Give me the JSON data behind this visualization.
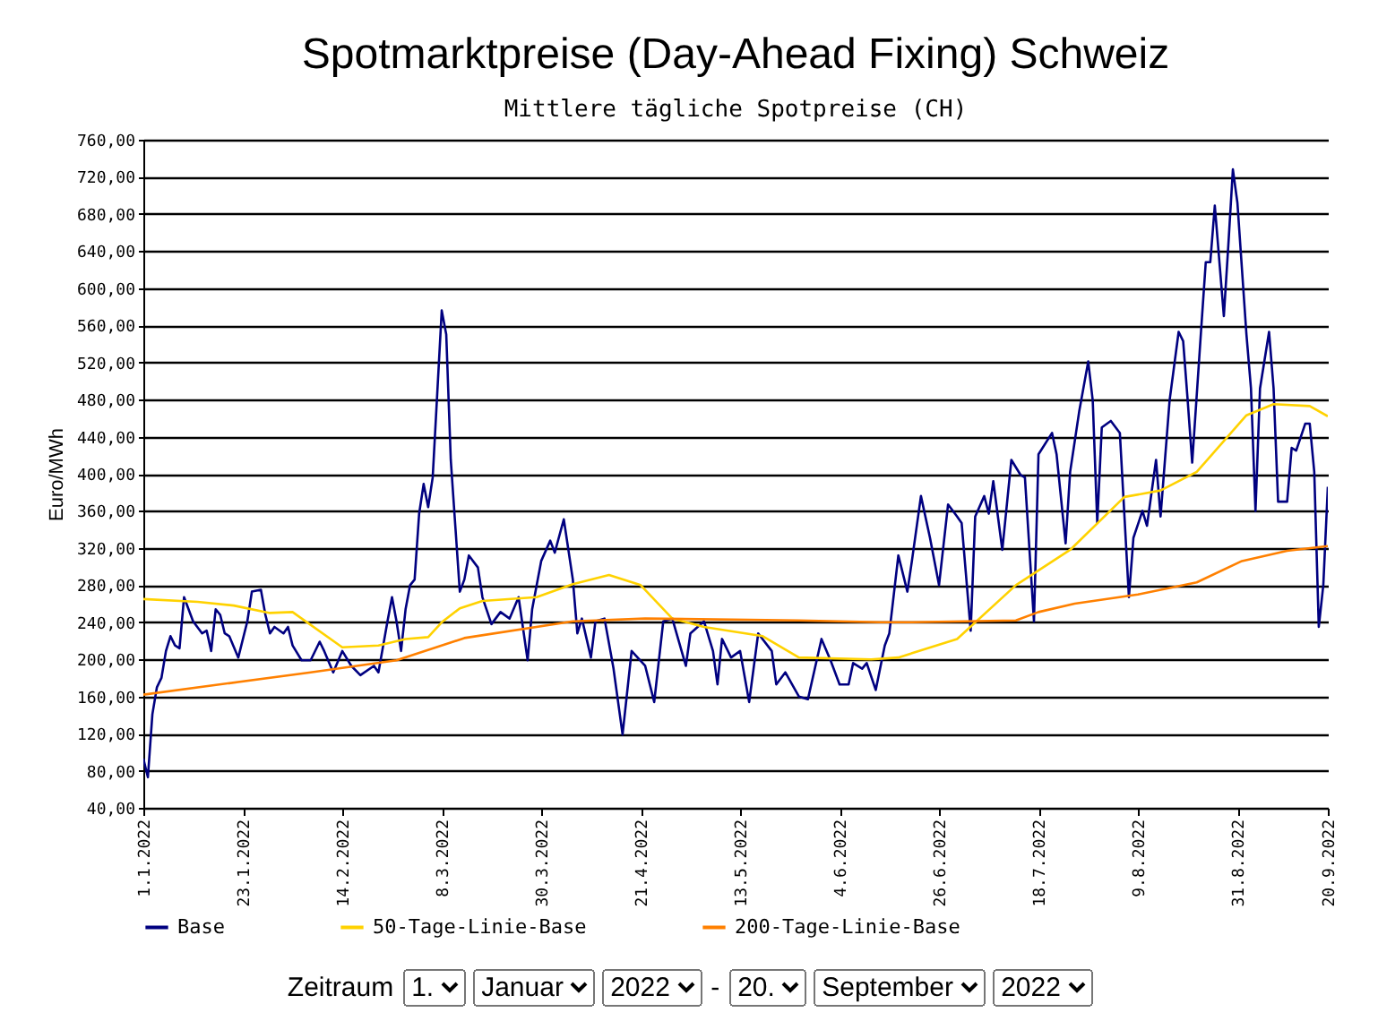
{
  "chart_data": {
    "type": "line",
    "title": "Spotmarktpreise (Day-Ahead Fixing) Schweiz",
    "subtitle": "Mittlere tägliche Spotpreise (CH)",
    "ylabel": "Euro/MWh",
    "xlim": [
      "2022-01-01",
      "2022-09-20"
    ],
    "xticks": [
      {
        "value": "2022-01-01",
        "label": "1.1.2022"
      },
      {
        "value": "2022-01-23",
        "label": "23.1.2022"
      },
      {
        "value": "2022-02-14",
        "label": "14.2.2022"
      },
      {
        "value": "2022-03-08",
        "label": "8.3.2022"
      },
      {
        "value": "2022-03-30",
        "label": "30.3.2022"
      },
      {
        "value": "2022-04-21",
        "label": "21.4.2022"
      },
      {
        "value": "2022-05-13",
        "label": "13.5.2022"
      },
      {
        "value": "2022-06-04",
        "label": "4.6.2022"
      },
      {
        "value": "2022-06-26",
        "label": "26.6.2022"
      },
      {
        "value": "2022-07-18",
        "label": "18.7.2022"
      },
      {
        "value": "2022-08-09",
        "label": "9.8.2022"
      },
      {
        "value": "2022-08-31",
        "label": "31.8.2022"
      },
      {
        "value": "2022-09-20",
        "label": "20.9.2022"
      }
    ],
    "ylim": [
      40,
      760
    ],
    "yticks": [
      {
        "value": 40,
        "label": "40,00"
      },
      {
        "value": 80,
        "label": "80,00"
      },
      {
        "value": 120,
        "label": "120,00"
      },
      {
        "value": 160,
        "label": "160,00"
      },
      {
        "value": 200,
        "label": "200,00"
      },
      {
        "value": 240,
        "label": "240,00"
      },
      {
        "value": 280,
        "label": "280,00"
      },
      {
        "value": 320,
        "label": "320,00"
      },
      {
        "value": 360,
        "label": "360,00"
      },
      {
        "value": 400,
        "label": "400,00"
      },
      {
        "value": 440,
        "label": "440,00"
      },
      {
        "value": 480,
        "label": "480,00"
      },
      {
        "value": 520,
        "label": "520,00"
      },
      {
        "value": 560,
        "label": "560,00"
      },
      {
        "value": 600,
        "label": "600,00"
      },
      {
        "value": 640,
        "label": "640,00"
      },
      {
        "value": 680,
        "label": "680,00"
      },
      {
        "value": 720,
        "label": "720,00"
      },
      {
        "value": 760,
        "label": "760,00"
      }
    ],
    "grid": "y",
    "legend": "bottom",
    "line_style": "solid",
    "series": [
      {
        "name": "Base",
        "color": "#000080",
        "x": [
          "2022-01-01",
          "2022-01-02",
          "2022-01-03",
          "2022-01-04",
          "2022-01-05",
          "2022-01-06",
          "2022-01-07",
          "2022-01-08",
          "2022-01-09",
          "2022-01-10",
          "2022-01-11",
          "2022-01-12",
          "2022-01-14",
          "2022-01-15",
          "2022-01-16",
          "2022-01-17",
          "2022-01-18",
          "2022-01-19",
          "2022-01-20",
          "2022-01-22",
          "2022-01-24",
          "2022-01-25",
          "2022-01-27",
          "2022-01-28",
          "2022-01-29",
          "2022-01-30",
          "2022-02-01",
          "2022-02-02",
          "2022-02-03",
          "2022-02-05",
          "2022-02-07",
          "2022-02-09",
          "2022-02-10",
          "2022-02-12",
          "2022-02-14",
          "2022-02-16",
          "2022-02-18",
          "2022-02-21",
          "2022-02-22",
          "2022-02-24",
          "2022-02-25",
          "2022-02-26",
          "2022-02-27",
          "2022-02-28",
          "2022-03-01",
          "2022-03-02",
          "2022-03-03",
          "2022-03-04",
          "2022-03-05",
          "2022-03-06",
          "2022-03-07",
          "2022-03-08",
          "2022-03-09",
          "2022-03-10",
          "2022-03-11",
          "2022-03-12",
          "2022-03-13",
          "2022-03-14",
          "2022-03-16",
          "2022-03-17",
          "2022-03-19",
          "2022-03-21",
          "2022-03-23",
          "2022-03-25",
          "2022-03-27",
          "2022-03-28",
          "2022-03-30",
          "2022-04-01",
          "2022-04-02",
          "2022-04-04",
          "2022-04-06",
          "2022-04-07",
          "2022-04-08",
          "2022-04-10",
          "2022-04-11",
          "2022-04-13",
          "2022-04-15",
          "2022-04-17",
          "2022-04-19",
          "2022-04-22",
          "2022-04-24",
          "2022-04-26",
          "2022-04-28",
          "2022-05-01",
          "2022-05-02",
          "2022-05-05",
          "2022-05-07",
          "2022-05-08",
          "2022-05-09",
          "2022-05-11",
          "2022-05-13",
          "2022-05-15",
          "2022-05-17",
          "2022-05-20",
          "2022-05-21",
          "2022-05-23",
          "2022-05-26",
          "2022-05-28",
          "2022-05-31",
          "2022-06-02",
          "2022-06-04",
          "2022-06-06",
          "2022-06-07",
          "2022-06-09",
          "2022-06-10",
          "2022-06-12",
          "2022-06-14",
          "2022-06-15",
          "2022-06-17",
          "2022-06-19",
          "2022-06-20",
          "2022-06-22",
          "2022-06-24",
          "2022-06-26",
          "2022-06-28",
          "2022-06-30",
          "2022-07-01",
          "2022-07-03",
          "2022-07-04",
          "2022-07-06",
          "2022-07-07",
          "2022-07-08",
          "2022-07-10",
          "2022-07-12",
          "2022-07-14",
          "2022-07-15",
          "2022-07-17",
          "2022-07-18",
          "2022-07-21",
          "2022-07-22",
          "2022-07-24",
          "2022-07-25",
          "2022-07-27",
          "2022-07-29",
          "2022-07-30",
          "2022-07-31",
          "2022-08-01",
          "2022-08-03",
          "2022-08-05",
          "2022-08-07",
          "2022-08-08",
          "2022-08-10",
          "2022-08-11",
          "2022-08-13",
          "2022-08-14",
          "2022-08-16",
          "2022-08-18",
          "2022-08-19",
          "2022-08-20",
          "2022-08-21",
          "2022-08-23",
          "2022-08-24",
          "2022-08-25",
          "2022-08-26",
          "2022-08-28",
          "2022-08-29",
          "2022-08-30",
          "2022-08-31",
          "2022-09-02",
          "2022-09-03",
          "2022-09-04",
          "2022-09-05",
          "2022-09-07",
          "2022-09-08",
          "2022-09-09",
          "2022-09-11",
          "2022-09-12",
          "2022-09-13",
          "2022-09-15",
          "2022-09-16",
          "2022-09-17",
          "2022-09-18",
          "2022-09-19",
          "2022-09-20"
        ],
        "values": [
          93,
          73,
          141,
          170,
          180,
          209,
          225,
          215,
          212,
          267,
          254,
          241,
          228,
          231,
          209,
          254,
          248,
          228,
          225,
          202,
          241,
          273,
          275,
          248,
          228,
          235,
          228,
          235,
          215,
          199,
          199,
          219,
          209,
          186,
          209,
          193,
          183,
          193,
          186,
          241,
          267,
          241,
          209,
          254,
          280,
          286,
          357,
          389,
          364,
          396,
          486,
          576,
          550,
          415,
          344,
          273,
          286,
          312,
          299,
          267,
          238,
          251,
          244,
          267,
          199,
          254,
          306,
          328,
          315,
          351,
          286,
          228,
          244,
          202,
          241,
          244,
          190,
          119,
          209,
          193,
          154,
          241,
          244,
          193,
          228,
          241,
          209,
          173,
          222,
          202,
          209,
          154,
          228,
          209,
          173,
          186,
          160,
          157,
          222,
          199,
          173,
          173,
          196,
          190,
          196,
          167,
          215,
          228,
          312,
          273,
          306,
          376,
          331,
          280,
          367,
          354,
          347,
          231,
          354,
          376,
          357,
          392,
          318,
          415,
          399,
          396,
          241,
          421,
          444,
          421,
          325,
          402,
          467,
          521,
          479,
          347,
          450,
          457,
          444,
          267,
          331,
          360,
          344,
          415,
          354,
          479,
          553,
          543,
          479,
          412,
          557,
          628,
          628,
          689,
          570,
          647,
          728,
          692,
          550,
          492,
          360,
          492,
          553,
          492,
          370,
          370,
          428,
          425,
          454,
          454,
          402,
          235,
          280,
          386
        ]
      },
      {
        "name": "50-Tage-Linie-Base",
        "color": "#ffd200",
        "x": [
          "2022-01-01",
          "2022-01-13",
          "2022-01-21",
          "2022-01-29",
          "2022-02-03",
          "2022-02-14",
          "2022-02-22",
          "2022-02-28",
          "2022-03-05",
          "2022-03-08",
          "2022-03-12",
          "2022-03-17",
          "2022-03-29",
          "2022-04-06",
          "2022-04-14",
          "2022-04-21",
          "2022-04-28",
          "2022-05-05",
          "2022-05-18",
          "2022-05-26",
          "2022-06-11",
          "2022-06-17",
          "2022-06-30",
          "2022-07-13",
          "2022-07-25",
          "2022-08-06",
          "2022-08-14",
          "2022-08-22",
          "2022-09-02",
          "2022-09-08",
          "2022-09-16",
          "2022-09-20"
        ],
        "values": [
          265,
          262,
          258,
          250,
          251,
          213,
          215,
          222,
          224,
          240,
          255,
          263,
          267,
          281,
          291,
          280,
          244,
          235,
          225,
          202,
          200,
          202,
          222,
          280,
          318,
          375,
          382,
          402,
          463,
          475,
          473,
          462
        ]
      },
      {
        "name": "200-Tage-Linie-Base",
        "color": "#ff8000",
        "x": [
          "2022-01-01",
          "2022-02-07",
          "2022-02-26",
          "2022-03-13",
          "2022-04-06",
          "2022-04-22",
          "2022-05-26",
          "2022-06-13",
          "2022-06-20",
          "2022-07-13",
          "2022-07-18",
          "2022-07-26",
          "2022-08-09",
          "2022-08-22",
          "2022-09-01",
          "2022-09-11",
          "2022-09-20"
        ],
        "values": [
          162,
          186,
          199,
          223,
          241,
          244,
          242,
          240,
          240,
          242,
          251,
          260,
          270,
          283,
          306,
          317,
          322
        ]
      }
    ],
    "annotations": [
      "Zeitraum",
      "1.",
      "Januar",
      "2022",
      "-",
      "20.",
      "September",
      "2022"
    ]
  }
}
